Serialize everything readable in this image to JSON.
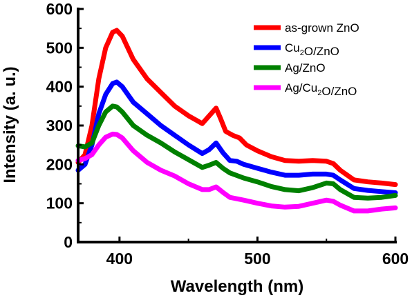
{
  "chart_data": {
    "type": "line",
    "xlabel": "Wavelength (nm)",
    "ylabel": "Intensity (a. u.)",
    "xlim": [
      370,
      600
    ],
    "ylim": [
      0,
      600
    ],
    "xticks": [
      400,
      500,
      600
    ],
    "yticks": [
      0,
      100,
      200,
      300,
      400,
      500,
      600
    ],
    "legend_position": "top-right",
    "series": [
      {
        "name": "as-grown ZnO",
        "label_parts": [
          {
            "t": "as-grown ZnO"
          }
        ],
        "color": "#ff0000",
        "points": [
          [
            370,
            205
          ],
          [
            375,
            225
          ],
          [
            380,
            300
          ],
          [
            385,
            420
          ],
          [
            390,
            500
          ],
          [
            395,
            540
          ],
          [
            398,
            545
          ],
          [
            402,
            530
          ],
          [
            410,
            470
          ],
          [
            420,
            420
          ],
          [
            430,
            385
          ],
          [
            440,
            350
          ],
          [
            450,
            325
          ],
          [
            455,
            315
          ],
          [
            460,
            305
          ],
          [
            465,
            325
          ],
          [
            470,
            345
          ],
          [
            473,
            320
          ],
          [
            477,
            285
          ],
          [
            482,
            275
          ],
          [
            487,
            268
          ],
          [
            492,
            250
          ],
          [
            500,
            235
          ],
          [
            510,
            220
          ],
          [
            520,
            210
          ],
          [
            530,
            208
          ],
          [
            540,
            210
          ],
          [
            550,
            208
          ],
          [
            555,
            202
          ],
          [
            560,
            185
          ],
          [
            570,
            160
          ],
          [
            580,
            155
          ],
          [
            590,
            152
          ],
          [
            600,
            148
          ]
        ]
      },
      {
        "name": "Cu2O/ZnO",
        "label_parts": [
          {
            "t": "Cu"
          },
          {
            "t": "2",
            "sub": true
          },
          {
            "t": "O/ZnO"
          }
        ],
        "color": "#0000ff",
        "points": [
          [
            370,
            185
          ],
          [
            375,
            200
          ],
          [
            380,
            250
          ],
          [
            385,
            330
          ],
          [
            390,
            380
          ],
          [
            395,
            408
          ],
          [
            398,
            412
          ],
          [
            402,
            400
          ],
          [
            410,
            360
          ],
          [
            420,
            330
          ],
          [
            430,
            300
          ],
          [
            440,
            275
          ],
          [
            450,
            250
          ],
          [
            460,
            228
          ],
          [
            465,
            238
          ],
          [
            470,
            255
          ],
          [
            475,
            230
          ],
          [
            480,
            210
          ],
          [
            485,
            208
          ],
          [
            490,
            200
          ],
          [
            500,
            190
          ],
          [
            510,
            180
          ],
          [
            520,
            172
          ],
          [
            530,
            172
          ],
          [
            540,
            175
          ],
          [
            550,
            175
          ],
          [
            555,
            172
          ],
          [
            560,
            160
          ],
          [
            570,
            138
          ],
          [
            580,
            133
          ],
          [
            590,
            130
          ],
          [
            600,
            127
          ]
        ]
      },
      {
        "name": "Ag/ZnO",
        "label_parts": [
          {
            "t": "Ag/ZnO"
          }
        ],
        "color": "#008000",
        "points": [
          [
            370,
            248
          ],
          [
            375,
            245
          ],
          [
            380,
            255
          ],
          [
            385,
            300
          ],
          [
            390,
            335
          ],
          [
            395,
            350
          ],
          [
            398,
            348
          ],
          [
            402,
            335
          ],
          [
            410,
            300
          ],
          [
            420,
            275
          ],
          [
            430,
            255
          ],
          [
            440,
            232
          ],
          [
            450,
            212
          ],
          [
            460,
            192
          ],
          [
            465,
            198
          ],
          [
            470,
            205
          ],
          [
            475,
            190
          ],
          [
            480,
            178
          ],
          [
            490,
            165
          ],
          [
            500,
            155
          ],
          [
            510,
            143
          ],
          [
            520,
            135
          ],
          [
            530,
            132
          ],
          [
            540,
            140
          ],
          [
            550,
            152
          ],
          [
            555,
            150
          ],
          [
            560,
            135
          ],
          [
            570,
            115
          ],
          [
            580,
            113
          ],
          [
            590,
            115
          ],
          [
            600,
            120
          ]
        ]
      },
      {
        "name": "Ag/Cu2O/ZnO",
        "label_parts": [
          {
            "t": "Ag/Cu"
          },
          {
            "t": "2",
            "sub": true
          },
          {
            "t": "O/ZnO"
          }
        ],
        "color": "#ff00ff",
        "points": [
          [
            370,
            210
          ],
          [
            375,
            215
          ],
          [
            380,
            225
          ],
          [
            385,
            250
          ],
          [
            390,
            270
          ],
          [
            395,
            278
          ],
          [
            398,
            277
          ],
          [
            402,
            268
          ],
          [
            410,
            235
          ],
          [
            420,
            205
          ],
          [
            430,
            185
          ],
          [
            440,
            170
          ],
          [
            450,
            150
          ],
          [
            460,
            135
          ],
          [
            465,
            135
          ],
          [
            470,
            142
          ],
          [
            475,
            128
          ],
          [
            480,
            115
          ],
          [
            490,
            108
          ],
          [
            500,
            100
          ],
          [
            510,
            93
          ],
          [
            520,
            90
          ],
          [
            530,
            92
          ],
          [
            540,
            100
          ],
          [
            550,
            108
          ],
          [
            555,
            105
          ],
          [
            560,
            95
          ],
          [
            570,
            80
          ],
          [
            580,
            80
          ],
          [
            590,
            85
          ],
          [
            600,
            88
          ]
        ]
      }
    ]
  }
}
